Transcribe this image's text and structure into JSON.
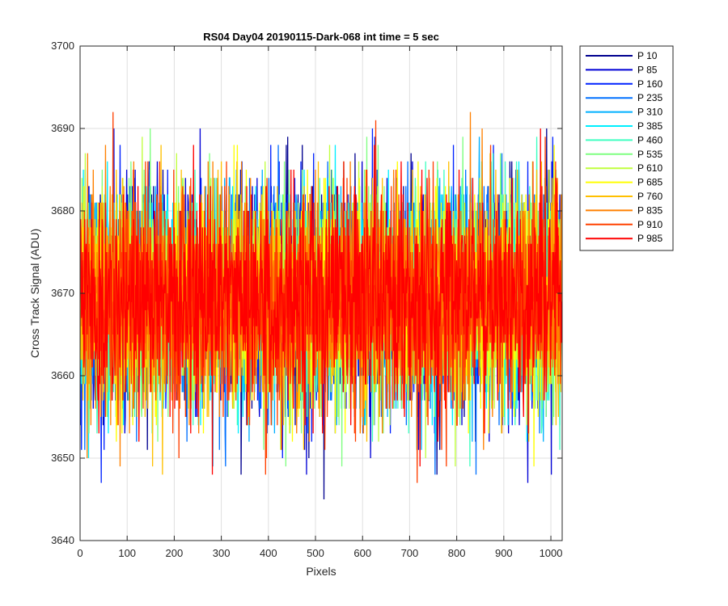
{
  "chart_data": {
    "type": "line",
    "title": "RS04 Day04 20190115-Dark-068 int time = 5 sec",
    "xlabel": "Pixels",
    "ylabel": "Cross Track Signal (ADU)",
    "xlim": [
      0,
      1024
    ],
    "ylim": [
      3640,
      3700
    ],
    "xticks": [
      0,
      100,
      200,
      300,
      400,
      500,
      600,
      700,
      800,
      900,
      1000
    ],
    "yticks": [
      3640,
      3650,
      3660,
      3670,
      3680,
      3690,
      3700
    ],
    "xtick_labels": [
      "0",
      "100",
      "200",
      "300",
      "400",
      "500",
      "600",
      "700",
      "800",
      "900",
      "1000"
    ],
    "ytick_labels": [
      "3640",
      "3650",
      "3660",
      "3670",
      "3680",
      "3690",
      "3700"
    ],
    "grid": true,
    "legend_position": "outside-top-right",
    "noise_model": {
      "mean": 3669.5,
      "std": 6.5,
      "min": 3641,
      "max": 3699,
      "points": 1024
    },
    "series": [
      {
        "name": "P 10",
        "color": "#00008f"
      },
      {
        "name": "P 85",
        "color": "#0000d6"
      },
      {
        "name": "P 160",
        "color": "#0022ff"
      },
      {
        "name": "P 235",
        "color": "#0070ff"
      },
      {
        "name": "P 310",
        "color": "#00b0ff"
      },
      {
        "name": "P 385",
        "color": "#00efff"
      },
      {
        "name": "P 460",
        "color": "#3effc1"
      },
      {
        "name": "P 535",
        "color": "#7fff80"
      },
      {
        "name": "P 610",
        "color": "#c0ff3f"
      },
      {
        "name": "P 685",
        "color": "#ffff00"
      },
      {
        "name": "P 760",
        "color": "#ffc000"
      },
      {
        "name": "P 835",
        "color": "#ff8000"
      },
      {
        "name": "P 910",
        "color": "#ff4000"
      },
      {
        "name": "P 985",
        "color": "#ff0000"
      }
    ]
  }
}
